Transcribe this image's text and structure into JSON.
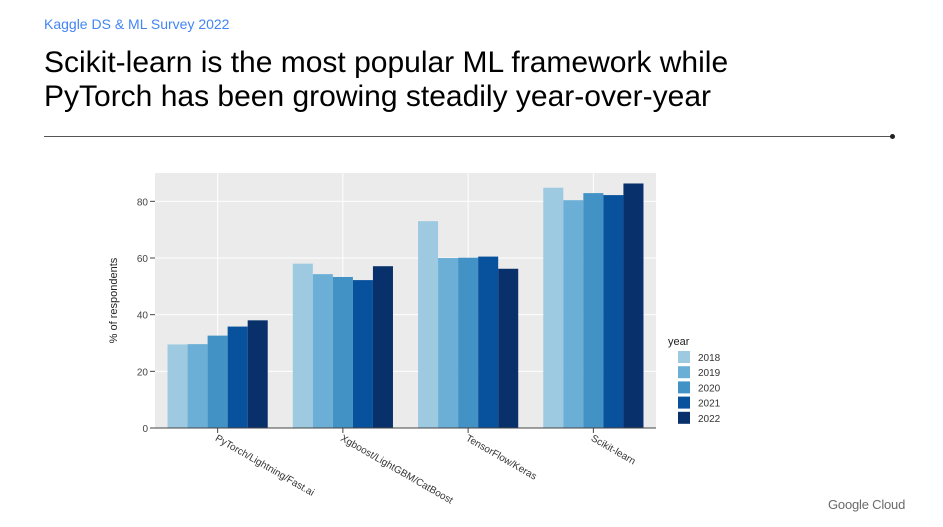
{
  "header": {
    "kicker": "Kaggle DS & ML Survey 2022",
    "headline_line1": "Scikit-learn is the most popular ML framework while",
    "headline_line2": "PyTorch has been growing steadily year-over-year"
  },
  "footer": {
    "logo_text": "Google Cloud"
  },
  "colors": {
    "plot_background": "#ebebeb",
    "gridline": "#ffffff",
    "series": [
      "#9ecae1",
      "#6baed6",
      "#4292c6",
      "#08519c",
      "#08306b"
    ]
  },
  "chart_data": {
    "type": "bar",
    "title": "",
    "xlabel": "",
    "ylabel": "% of respondents",
    "ylim": [
      0,
      90
    ],
    "yticks": [
      0,
      20,
      40,
      60,
      80
    ],
    "grid": true,
    "legend_title": "year",
    "legend_position": "right",
    "categories": [
      "PyTorch/Lightning/Fast.ai",
      "Xgboost/LightGBM/CatBoost",
      "TensorFlow/Keras",
      "Scikit-learn"
    ],
    "series": [
      {
        "name": "2018",
        "values": [
          29.5,
          58.0,
          73.0,
          84.8
        ]
      },
      {
        "name": "2019",
        "values": [
          29.6,
          54.3,
          60.0,
          80.4
        ]
      },
      {
        "name": "2020",
        "values": [
          32.6,
          53.3,
          60.1,
          82.9
        ]
      },
      {
        "name": "2021",
        "values": [
          35.8,
          52.2,
          60.5,
          82.2
        ]
      },
      {
        "name": "2022",
        "values": [
          38.0,
          57.1,
          56.2,
          86.3
        ]
      }
    ]
  }
}
